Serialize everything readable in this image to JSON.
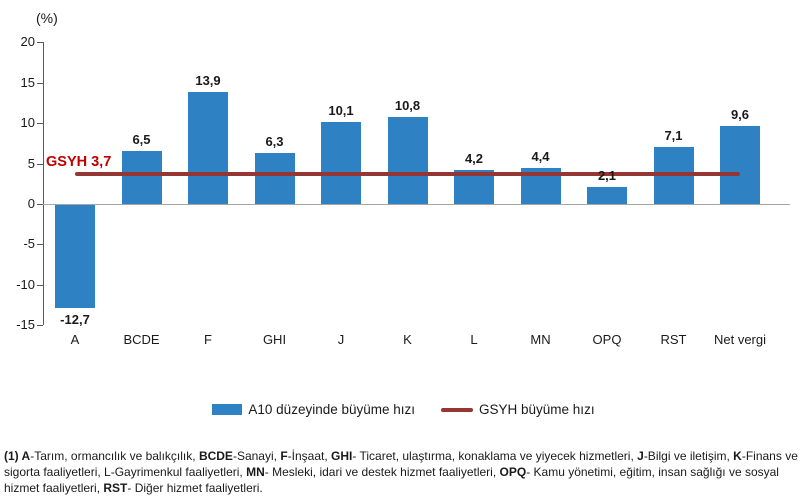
{
  "chart_data": {
    "type": "bar",
    "title": "",
    "xlabel": "",
    "ylabel": "(%)",
    "ylim": [
      -15,
      20
    ],
    "yticks": [
      20,
      15,
      10,
      5,
      0,
      -5,
      -10,
      -15
    ],
    "grid": false,
    "legend_position": "bottom",
    "categories": [
      "A",
      "BCDE",
      "F",
      "GHI",
      "J",
      "K",
      "L",
      "MN",
      "OPQ",
      "RST",
      "Net vergi"
    ],
    "series": [
      {
        "name": "A10 düzeyinde büyüme hızı",
        "values": [
          -12.7,
          6.5,
          13.9,
          6.3,
          10.1,
          10.8,
          4.2,
          4.4,
          2.1,
          7.1,
          9.6
        ]
      }
    ],
    "value_labels": [
      "-12,7",
      "6,5",
      "13,9",
      "6,3",
      "10,1",
      "10,8",
      "4,2",
      "4,4",
      "2,1",
      "7,1",
      "9,6"
    ],
    "reference_line": {
      "name": "GSYH büyüme hızı",
      "value": 3.7,
      "label": "GSYH 3,7"
    },
    "colors": {
      "bar": "#2e82c4",
      "line": "#943634",
      "line_label": "#c00000",
      "axis": "#595959",
      "zero_line": "#a6a6a6",
      "text": "#1a1a1a"
    }
  },
  "legend": {
    "bar_label": "A10 düzeyinde büyüme hızı",
    "line_label": "GSYH büyüme hızı"
  },
  "footnote": {
    "runs": [
      {
        "text": "(1) A",
        "bold": true
      },
      {
        "text": "-Tarım, ormancılık ve balıkçılık, ",
        "bold": false
      },
      {
        "text": "BCDE",
        "bold": true
      },
      {
        "text": "-Sanayi, ",
        "bold": false
      },
      {
        "text": "F",
        "bold": true
      },
      {
        "text": "-İnşaat, ",
        "bold": false
      },
      {
        "text": "GHI",
        "bold": true
      },
      {
        "text": "- Ticaret, ulaştırma, konaklama ve yiyecek hizmetleri, ",
        "bold": false
      },
      {
        "text": "J",
        "bold": true
      },
      {
        "text": "-Bilgi ve iletişim, ",
        "bold": false
      },
      {
        "text": "K",
        "bold": true
      },
      {
        "text": "-Finans ve sigorta faaliyetleri, L-Gayrimenkul faaliyetleri, ",
        "bold": false
      },
      {
        "text": "MN",
        "bold": true
      },
      {
        "text": "- Mesleki, idari ve destek hizmet faaliyetleri, ",
        "bold": false
      },
      {
        "text": "OPQ",
        "bold": true
      },
      {
        "text": "- Kamu yönetimi, eğitim, insan sağlığı ve sosyal hizmet faaliyetleri, ",
        "bold": false
      },
      {
        "text": "RST",
        "bold": true
      },
      {
        "text": "- Diğer hizmet faaliyetleri.",
        "bold": false
      }
    ]
  }
}
